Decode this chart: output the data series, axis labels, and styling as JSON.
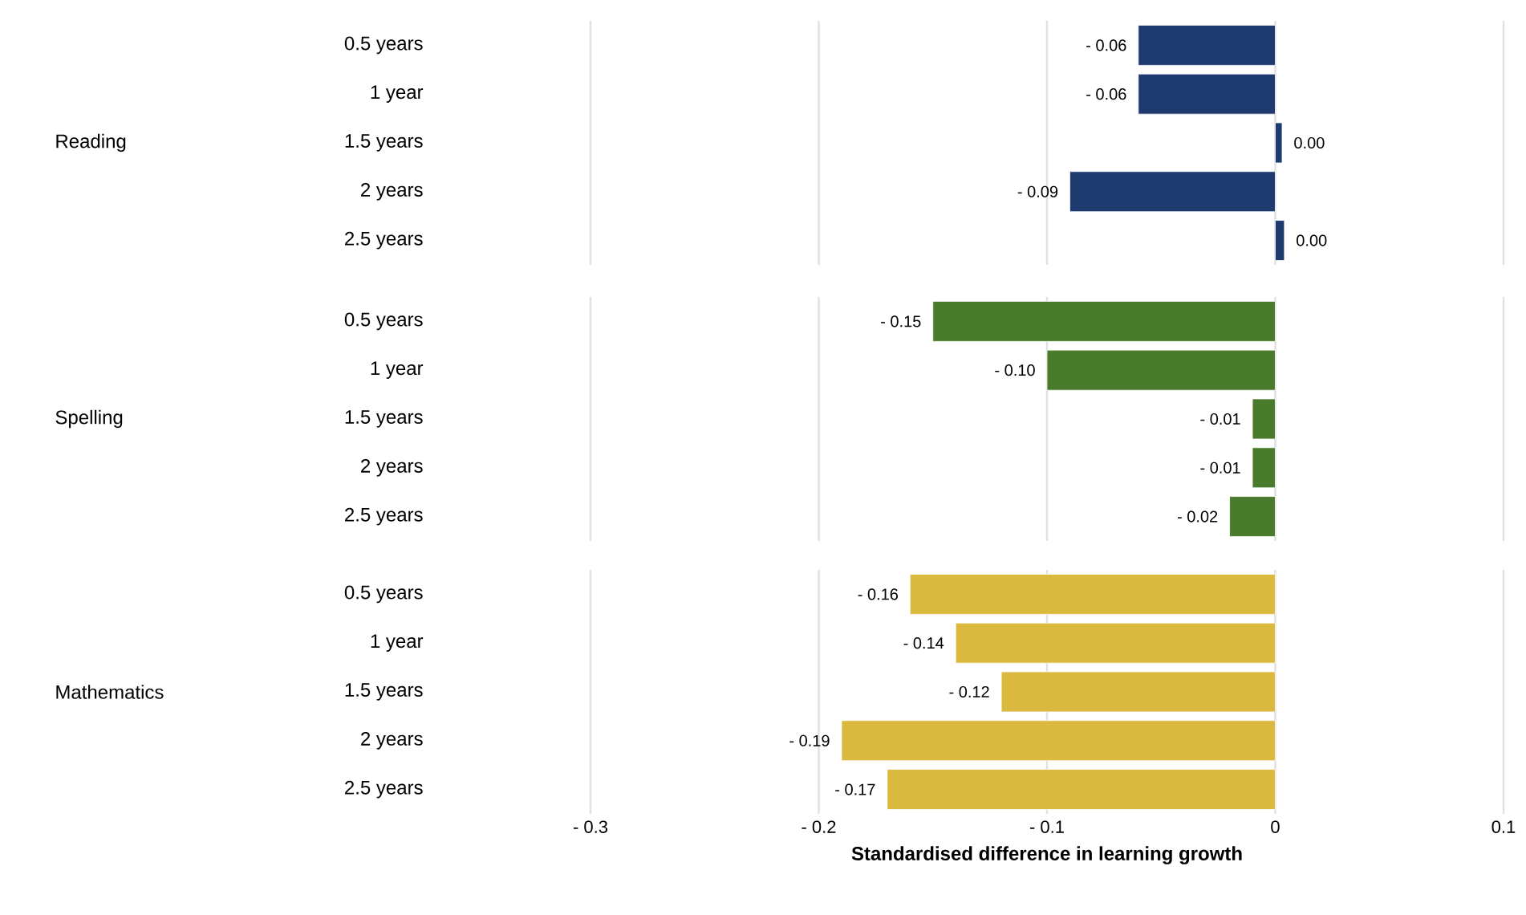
{
  "chart_data": [
    {
      "type": "bar",
      "orientation": "horizontal",
      "ylabel": "Reading",
      "categories": [
        "0.5 years",
        "1 year",
        "1.5 years",
        "2 years",
        "2.5 years"
      ],
      "values": [
        -0.06,
        -0.06,
        0.003,
        -0.09,
        0.004
      ],
      "value_labels": [
        "- 0.06",
        "- 0.06",
        "0.00",
        "- 0.09",
        "0.00"
      ],
      "color": "#1f3a6e",
      "xlim": [
        -0.3,
        0.1
      ],
      "xticks": [
        -0.3,
        -0.2,
        -0.1,
        0,
        0.1
      ],
      "grid": "x",
      "tick_labels": "y"
    },
    {
      "type": "bar",
      "orientation": "horizontal",
      "ylabel": "Spelling",
      "categories": [
        "0.5 years",
        "1 year",
        "1.5 years",
        "2 years",
        "2.5 years"
      ],
      "values": [
        -0.15,
        -0.1,
        -0.01,
        -0.01,
        -0.02
      ],
      "value_labels": [
        "- 0.15",
        "- 0.10",
        "- 0.01",
        "- 0.01",
        "- 0.02"
      ],
      "color": "#4a7a2c",
      "xlim": [
        -0.3,
        0.1
      ],
      "xticks": [
        -0.3,
        -0.2,
        -0.1,
        0,
        0.1
      ],
      "grid": "x",
      "tick_labels": "y"
    },
    {
      "type": "bar",
      "orientation": "horizontal",
      "ylabel": "Mathematics",
      "xlabel": "Standardised difference in learning growth",
      "categories": [
        "0.5 years",
        "1 year",
        "1.5 years",
        "2 years",
        "2.5 years"
      ],
      "values": [
        -0.16,
        -0.14,
        -0.12,
        -0.19,
        -0.17
      ],
      "value_labels": [
        "- 0.16",
        "- 0.14",
        "- 0.12",
        "- 0.19",
        "- 0.17"
      ],
      "color": "#dbb83e",
      "xlim": [
        -0.3,
        0.1
      ],
      "xticks": [
        {
          "value": -0.3,
          "label": "- 0.3"
        },
        {
          "value": -0.2,
          "label": "- 0.2"
        },
        {
          "value": -0.1,
          "label": "- 0.1"
        },
        0,
        0.1
      ],
      "grid": "x"
    }
  ]
}
